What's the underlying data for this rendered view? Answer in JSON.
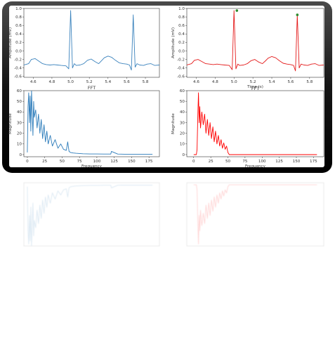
{
  "chart_data": [
    {
      "type": "line",
      "panel": "top-left",
      "title": "",
      "xlabel": "FFT",
      "ylabel": "Amplitude (mV)",
      "xlim": [
        4.5,
        5.95
      ],
      "ylim": [
        -0.62,
        1.0
      ],
      "xticks": [
        "4.6",
        "4.8",
        "5.0",
        "5.2",
        "5.4",
        "5.6",
        "5.8"
      ],
      "yticks": [
        "1.0",
        "0.8",
        "0.6",
        "0.4",
        "0.2",
        "0.0",
        "-0.2",
        "-0.4",
        "-0.6"
      ],
      "color": "#3b83bd",
      "series": [
        {
          "x": [
            4.5,
            4.55,
            4.58,
            4.62,
            4.66,
            4.7,
            4.74,
            4.78,
            4.82,
            4.86,
            4.9,
            4.95,
            4.98,
            5.0,
            5.02,
            5.04,
            5.06,
            5.1,
            5.14,
            5.18,
            5.22,
            5.26,
            5.3,
            5.33,
            5.36,
            5.4,
            5.44,
            5.48,
            5.52,
            5.56,
            5.6,
            5.63,
            5.65,
            5.67,
            5.69,
            5.71,
            5.74,
            5.78,
            5.82,
            5.86,
            5.9,
            5.95
          ],
          "y": [
            -0.33,
            -0.3,
            -0.2,
            -0.18,
            -0.24,
            -0.3,
            -0.32,
            -0.33,
            -0.32,
            -0.33,
            -0.34,
            -0.35,
            -0.42,
            0.95,
            -0.4,
            -0.3,
            -0.34,
            -0.33,
            -0.3,
            -0.22,
            -0.19,
            -0.25,
            -0.3,
            -0.23,
            -0.16,
            -0.12,
            -0.15,
            -0.22,
            -0.28,
            -0.3,
            -0.31,
            -0.33,
            -0.45,
            0.85,
            -0.38,
            -0.3,
            -0.33,
            -0.34,
            -0.31,
            -0.3,
            -0.34,
            -0.33
          ]
        }
      ]
    },
    {
      "type": "line",
      "panel": "top-right",
      "title": "",
      "xlabel": "Time (s)",
      "ylabel": "Amplitude (mV)",
      "xlim": [
        4.5,
        5.95
      ],
      "ylim": [
        -0.62,
        1.0
      ],
      "xticks": [
        "4.6",
        "4.8",
        "5.0",
        "5.2",
        "5.4",
        "5.6",
        "5.8"
      ],
      "yticks": [
        "1.0",
        "0.8",
        "0.6",
        "0.4",
        "0.2",
        "0.0",
        "-0.2",
        "-0.4",
        "-0.6"
      ],
      "color": "#e41a1a",
      "series": [
        {
          "x": [
            4.5,
            4.55,
            4.58,
            4.62,
            4.66,
            4.7,
            4.74,
            4.78,
            4.82,
            4.86,
            4.9,
            4.95,
            4.98,
            5.0,
            5.02,
            5.04,
            5.06,
            5.1,
            5.14,
            5.18,
            5.22,
            5.26,
            5.3,
            5.33,
            5.36,
            5.4,
            5.44,
            5.48,
            5.52,
            5.56,
            5.6,
            5.63,
            5.65,
            5.67,
            5.69,
            5.71,
            5.74,
            5.78,
            5.82,
            5.86,
            5.9,
            5.95
          ],
          "y": [
            -0.33,
            -0.3,
            -0.22,
            -0.2,
            -0.25,
            -0.3,
            -0.31,
            -0.32,
            -0.31,
            -0.32,
            -0.33,
            -0.34,
            -0.44,
            0.95,
            -0.42,
            -0.31,
            -0.34,
            -0.33,
            -0.3,
            -0.23,
            -0.2,
            -0.26,
            -0.3,
            -0.24,
            -0.17,
            -0.13,
            -0.16,
            -0.23,
            -0.29,
            -0.31,
            -0.32,
            -0.34,
            -0.47,
            0.85,
            -0.4,
            -0.31,
            -0.33,
            -0.34,
            -0.31,
            -0.3,
            -0.34,
            -0.33
          ]
        }
      ],
      "peaks": {
        "x": [
          5.03,
          5.67
        ],
        "y": [
          0.95,
          0.85
        ],
        "color": "#2e8b2e"
      }
    },
    {
      "type": "line",
      "panel": "bottom-left",
      "title": "",
      "xlabel": "Frequency",
      "ylabel": "Magnitude",
      "xlim": [
        -5,
        190
      ],
      "ylim": [
        -2,
        60
      ],
      "xticks": [
        "0",
        "25",
        "50",
        "75",
        "100",
        "125",
        "150",
        "175"
      ],
      "yticks": [
        "0",
        "10",
        "20",
        "30",
        "40",
        "50",
        "60"
      ],
      "color": "#2b7bba",
      "series": [
        {
          "x": [
            0,
            1,
            2,
            3,
            4,
            5,
            6,
            7,
            8,
            9,
            10,
            12,
            14,
            16,
            18,
            20,
            22,
            24,
            26,
            28,
            30,
            33,
            36,
            40,
            44,
            48,
            52,
            56,
            58,
            60,
            62,
            66,
            70,
            80,
            90,
            100,
            110,
            120,
            121,
            130,
            140,
            150,
            160,
            170,
            180
          ],
          "y": [
            2,
            45,
            58,
            30,
            55,
            22,
            60,
            40,
            18,
            50,
            35,
            42,
            25,
            38,
            20,
            33,
            15,
            28,
            12,
            22,
            10,
            18,
            8,
            14,
            6,
            10,
            5,
            4,
            12,
            3,
            2,
            1.5,
            1.2,
            0.8,
            0.6,
            0.6,
            0.5,
            0.5,
            3,
            0.5,
            0.4,
            0.4,
            0.4,
            0.4,
            0.4
          ]
        }
      ]
    },
    {
      "type": "line",
      "panel": "bottom-right",
      "title": "FFT",
      "xlabel": "Frequency",
      "ylabel": "Magnitude",
      "xlim": [
        -10,
        190
      ],
      "ylim": [
        -2,
        60
      ],
      "xticks": [
        "0",
        "25",
        "50",
        "75",
        "100",
        "125",
        "150",
        "175"
      ],
      "yticks": [
        "0",
        "10",
        "20",
        "30",
        "40",
        "50",
        "60"
      ],
      "color": "#ff0000",
      "series": [
        {
          "x": [
            0,
            4,
            5,
            6,
            7,
            8,
            9,
            10,
            12,
            14,
            16,
            18,
            20,
            22,
            24,
            26,
            28,
            30,
            32,
            34,
            36,
            38,
            40,
            42,
            44,
            46,
            48,
            50,
            52,
            60,
            80,
            100,
            120,
            150,
            180
          ],
          "y": [
            0,
            0,
            5,
            35,
            58,
            30,
            45,
            25,
            40,
            28,
            38,
            20,
            33,
            18,
            30,
            15,
            26,
            12,
            22,
            10,
            18,
            8,
            14,
            6,
            11,
            5,
            8,
            2,
            0,
            0,
            0,
            0,
            0,
            0,
            0
          ]
        }
      ]
    }
  ]
}
